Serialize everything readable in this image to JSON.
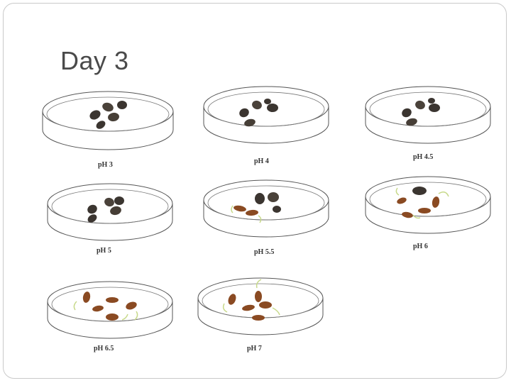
{
  "slide": {
    "title": "Day 3"
  },
  "dishes": [
    {
      "label": "pH 3",
      "seeds": "dark",
      "count": 5
    },
    {
      "label": "pH 4",
      "seeds": "dark",
      "count": 5
    },
    {
      "label": "pH 4.5",
      "seeds": "dark",
      "count": 5
    },
    {
      "label": "pH 5",
      "seeds": "dark",
      "count": 5
    },
    {
      "label": "pH 5.5",
      "seeds": "mixed",
      "count": 5
    },
    {
      "label": "pH 6",
      "seeds": "mixed-sprouting",
      "count": 5
    },
    {
      "label": "pH 6.5",
      "seeds": "brown-sprouting",
      "count": 5
    },
    {
      "label": "pH 7",
      "seeds": "brown-sprouting",
      "count": 5
    }
  ],
  "colors": {
    "dark_seed": "#3b3530",
    "brown_seed": "#8a4a22",
    "sprout": "#c7d98a",
    "dish_outline": "#555555"
  }
}
